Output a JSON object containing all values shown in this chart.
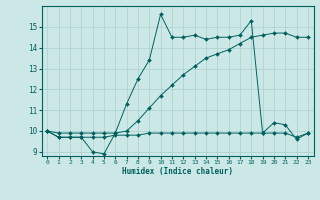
{
  "xlabel": "Humidex (Indice chaleur)",
  "bg_color": "#cce8e6",
  "grid_color": "#aacfcd",
  "line_color": "#006060",
  "xlim": [
    -0.5,
    23.5
  ],
  "ylim": [
    8.8,
    16.0
  ],
  "yticks": [
    9,
    10,
    11,
    12,
    13,
    14,
    15
  ],
  "xticks": [
    0,
    1,
    2,
    3,
    4,
    5,
    6,
    7,
    8,
    9,
    10,
    11,
    12,
    13,
    14,
    15,
    16,
    17,
    18,
    19,
    20,
    21,
    22,
    23
  ],
  "line1_x": [
    0,
    1,
    2,
    3,
    4,
    5,
    6,
    7,
    8,
    9,
    10,
    11,
    12,
    13,
    14,
    15,
    16,
    17,
    18,
    19,
    20,
    21,
    22,
    23
  ],
  "line1_y": [
    10.0,
    9.7,
    9.7,
    9.7,
    9.7,
    9.7,
    9.8,
    9.8,
    9.8,
    9.9,
    9.9,
    9.9,
    9.9,
    9.9,
    9.9,
    9.9,
    9.9,
    9.9,
    9.9,
    9.9,
    9.9,
    9.9,
    9.7,
    9.9
  ],
  "line2_x": [
    0,
    1,
    2,
    3,
    4,
    5,
    6,
    7,
    8,
    9,
    10,
    11,
    12,
    13,
    14,
    15,
    16,
    17,
    18,
    19,
    20,
    21,
    22,
    23
  ],
  "line2_y": [
    10.0,
    9.7,
    9.7,
    9.7,
    9.0,
    8.9,
    9.9,
    11.3,
    12.5,
    13.4,
    15.6,
    14.5,
    14.5,
    14.6,
    14.4,
    14.5,
    14.5,
    14.6,
    15.3,
    9.9,
    10.4,
    10.3,
    9.6,
    9.9
  ],
  "line3_x": [
    0,
    1,
    2,
    3,
    4,
    5,
    6,
    7,
    8,
    9,
    10,
    11,
    12,
    13,
    14,
    15,
    16,
    17,
    18,
    19,
    20,
    21,
    22,
    23
  ],
  "line3_y": [
    10.0,
    9.9,
    9.9,
    9.9,
    9.9,
    9.9,
    9.9,
    10.0,
    10.5,
    11.1,
    11.7,
    12.2,
    12.7,
    13.1,
    13.5,
    13.7,
    13.9,
    14.2,
    14.5,
    14.6,
    14.7,
    14.7,
    14.5,
    14.5
  ]
}
